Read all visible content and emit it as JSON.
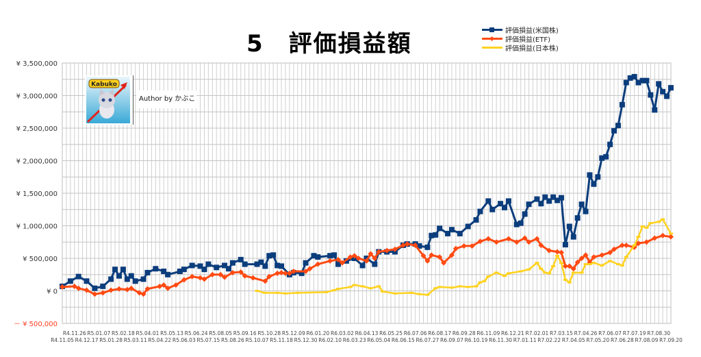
{
  "chart_data": {
    "type": "line",
    "title": "5　評価損益額",
    "xlabel": "",
    "ylabel": "",
    "x_unit": "weeks since R4.11.05",
    "xlim": [
      0,
      150
    ],
    "ylim": [
      -500000,
      3500000
    ],
    "y_ticks": [
      3500000,
      3000000,
      2500000,
      2000000,
      1500000,
      1000000,
      500000,
      0,
      -500000
    ],
    "y_tick_labels": [
      "¥ 3,500,000",
      "¥ 3,000,000",
      "¥ 2,500,000",
      "¥ 2,000,000",
      "¥ 1,500,000",
      "¥ 1,000,000",
      "¥ 500,000",
      "¥ 0",
      "－ ¥ 500,000"
    ],
    "negative_color": "#ff3b1f",
    "grid": true,
    "legend_position": "top-right",
    "x_tick_labels": [
      "R4.11.05",
      "R4.11.26",
      "R4.12.17",
      "R5.01.07",
      "R5.01.28",
      "R5.02.18",
      "R5.03.11",
      "R5.04.01",
      "R5.04.22",
      "R5.05.13",
      "R5.06.03",
      "R5.06.24",
      "R5.07.15",
      "R5.08.05",
      "R5.08.26",
      "R5.09.16",
      "R5.10.07",
      "R5.10.28",
      "R5.11.18",
      "R5.12.09",
      "R5.12.30",
      "R6.01.20",
      "R6.02.10",
      "R6.03.02",
      "R6.03.23",
      "R6.04.13",
      "R6.05.04",
      "R6.05.25",
      "R6.06.15",
      "R6.07.06",
      "R6.07.27",
      "R6.08.17",
      "R6.09.07",
      "R6.09.28",
      "R6.10.19",
      "R6.11.09",
      "R6.11.30",
      "R6.12.21",
      "R7.01.11",
      "R7.02.01",
      "R7.02.22",
      "R7.03.15",
      "R7.04.05",
      "R7.04.26",
      "R7.05.20",
      "R7.06.07",
      "R7.06.28",
      "R7.07.19",
      "R7.08.09",
      "R7.08.30",
      "R7.09.20"
    ],
    "series": [
      {
        "name": "評価損益(米国株)",
        "color": "#0b3d7c",
        "marker": "square",
        "points": [
          [
            0,
            70000
          ],
          [
            2,
            150000
          ],
          [
            4,
            220000
          ],
          [
            6,
            150000
          ],
          [
            8,
            40000
          ],
          [
            10,
            70000
          ],
          [
            12,
            180000
          ],
          [
            13,
            330000
          ],
          [
            14,
            230000
          ],
          [
            15,
            330000
          ],
          [
            16,
            180000
          ],
          [
            17,
            230000
          ],
          [
            18,
            150000
          ],
          [
            20,
            180000
          ],
          [
            21,
            280000
          ],
          [
            23,
            340000
          ],
          [
            25,
            300000
          ],
          [
            26,
            250000
          ],
          [
            29,
            300000
          ],
          [
            30,
            330000
          ],
          [
            32,
            390000
          ],
          [
            34,
            380000
          ],
          [
            35,
            330000
          ],
          [
            36,
            410000
          ],
          [
            38,
            360000
          ],
          [
            40,
            390000
          ],
          [
            41,
            340000
          ],
          [
            42,
            430000
          ],
          [
            44,
            480000
          ],
          [
            45,
            410000
          ],
          [
            48,
            410000
          ],
          [
            49,
            440000
          ],
          [
            50,
            380000
          ],
          [
            51,
            540000
          ],
          [
            52,
            550000
          ],
          [
            53,
            390000
          ],
          [
            54,
            380000
          ],
          [
            56,
            250000
          ],
          [
            57,
            280000
          ],
          [
            59,
            270000
          ],
          [
            60,
            430000
          ],
          [
            62,
            540000
          ],
          [
            63,
            520000
          ],
          [
            66,
            540000
          ],
          [
            67,
            550000
          ],
          [
            68,
            410000
          ],
          [
            70,
            460000
          ],
          [
            72,
            500000
          ],
          [
            74,
            390000
          ],
          [
            75,
            500000
          ],
          [
            77,
            410000
          ],
          [
            78,
            600000
          ],
          [
            80,
            600000
          ],
          [
            82,
            600000
          ],
          [
            84,
            700000
          ],
          [
            85,
            720000
          ],
          [
            87,
            720000
          ],
          [
            88,
            690000
          ],
          [
            90,
            670000
          ],
          [
            91,
            850000
          ],
          [
            92,
            860000
          ],
          [
            93,
            960000
          ],
          [
            95,
            880000
          ],
          [
            96,
            940000
          ],
          [
            98,
            880000
          ],
          [
            100,
            990000
          ],
          [
            102,
            1090000
          ],
          [
            103,
            1220000
          ],
          [
            105,
            1380000
          ],
          [
            106,
            1250000
          ],
          [
            108,
            1340000
          ],
          [
            109,
            1280000
          ],
          [
            110,
            1380000
          ],
          [
            112,
            1020000
          ],
          [
            113,
            1040000
          ],
          [
            114,
            1180000
          ],
          [
            115,
            1330000
          ],
          [
            117,
            1410000
          ],
          [
            118,
            1340000
          ],
          [
            119,
            1440000
          ],
          [
            120,
            1380000
          ],
          [
            121,
            1440000
          ],
          [
            122,
            1390000
          ],
          [
            123,
            1430000
          ],
          [
            124,
            710000
          ],
          [
            125,
            990000
          ],
          [
            126,
            830000
          ],
          [
            127,
            1120000
          ],
          [
            128,
            1330000
          ],
          [
            129,
            1220000
          ],
          [
            130,
            1780000
          ],
          [
            131,
            1640000
          ],
          [
            132,
            1750000
          ],
          [
            133,
            2040000
          ],
          [
            134,
            2060000
          ],
          [
            135,
            2250000
          ],
          [
            136,
            2460000
          ],
          [
            137,
            2540000
          ],
          [
            138,
            2860000
          ],
          [
            139,
            3200000
          ],
          [
            140,
            3270000
          ],
          [
            141,
            3290000
          ],
          [
            142,
            3200000
          ],
          [
            143,
            3230000
          ],
          [
            144,
            3230000
          ],
          [
            145,
            3010000
          ],
          [
            146,
            2780000
          ],
          [
            147,
            3180000
          ],
          [
            148,
            3060000
          ],
          [
            149,
            2990000
          ],
          [
            150,
            3120000
          ]
        ]
      },
      {
        "name": "評価損益(ETF)",
        "color": "#ff4a12",
        "marker": "diamond",
        "points": [
          [
            0,
            60000
          ],
          [
            3,
            70000
          ],
          [
            4,
            40000
          ],
          [
            6,
            10000
          ],
          [
            8,
            -50000
          ],
          [
            10,
            -30000
          ],
          [
            12,
            10000
          ],
          [
            14,
            30000
          ],
          [
            16,
            20000
          ],
          [
            17,
            40000
          ],
          [
            19,
            -30000
          ],
          [
            20,
            -50000
          ],
          [
            21,
            30000
          ],
          [
            24,
            70000
          ],
          [
            25,
            90000
          ],
          [
            26,
            40000
          ],
          [
            28,
            90000
          ],
          [
            30,
            170000
          ],
          [
            32,
            220000
          ],
          [
            34,
            200000
          ],
          [
            35,
            180000
          ],
          [
            37,
            250000
          ],
          [
            39,
            250000
          ],
          [
            40,
            210000
          ],
          [
            42,
            280000
          ],
          [
            44,
            290000
          ],
          [
            45,
            230000
          ],
          [
            47,
            200000
          ],
          [
            50,
            150000
          ],
          [
            51,
            220000
          ],
          [
            53,
            270000
          ],
          [
            54,
            280000
          ],
          [
            55,
            270000
          ],
          [
            56,
            270000
          ],
          [
            57,
            300000
          ],
          [
            60,
            300000
          ],
          [
            61,
            340000
          ],
          [
            63,
            410000
          ],
          [
            66,
            460000
          ],
          [
            68,
            480000
          ],
          [
            69,
            430000
          ],
          [
            71,
            520000
          ],
          [
            72,
            540000
          ],
          [
            73,
            500000
          ],
          [
            75,
            460000
          ],
          [
            76,
            570000
          ],
          [
            77,
            500000
          ],
          [
            78,
            600000
          ],
          [
            80,
            620000
          ],
          [
            82,
            640000
          ],
          [
            84,
            700000
          ],
          [
            85,
            720000
          ],
          [
            87,
            700000
          ],
          [
            89,
            540000
          ],
          [
            90,
            460000
          ],
          [
            91,
            550000
          ],
          [
            93,
            520000
          ],
          [
            94,
            430000
          ],
          [
            96,
            550000
          ],
          [
            97,
            650000
          ],
          [
            99,
            690000
          ],
          [
            101,
            690000
          ],
          [
            103,
            760000
          ],
          [
            105,
            800000
          ],
          [
            107,
            750000
          ],
          [
            110,
            800000
          ],
          [
            112,
            750000
          ],
          [
            114,
            810000
          ],
          [
            115,
            750000
          ],
          [
            117,
            800000
          ],
          [
            118,
            700000
          ],
          [
            120,
            620000
          ],
          [
            122,
            600000
          ],
          [
            123,
            590000
          ],
          [
            124,
            380000
          ],
          [
            125,
            380000
          ],
          [
            126,
            340000
          ],
          [
            127,
            440000
          ],
          [
            128,
            500000
          ],
          [
            129,
            550000
          ],
          [
            130,
            440000
          ],
          [
            131,
            520000
          ],
          [
            133,
            550000
          ],
          [
            135,
            590000
          ],
          [
            136,
            640000
          ],
          [
            138,
            700000
          ],
          [
            139,
            700000
          ],
          [
            141,
            670000
          ],
          [
            142,
            730000
          ],
          [
            144,
            750000
          ],
          [
            146,
            810000
          ],
          [
            148,
            850000
          ],
          [
            150,
            830000
          ]
        ]
      },
      {
        "name": "評価損益(日本株)",
        "color": "#ffd21f",
        "marker": "dash",
        "points": [
          [
            48,
            0
          ],
          [
            50,
            -30000
          ],
          [
            53,
            -30000
          ],
          [
            55,
            -40000
          ],
          [
            58,
            -30000
          ],
          [
            65,
            -20000
          ],
          [
            67,
            10000
          ],
          [
            68,
            30000
          ],
          [
            71,
            60000
          ],
          [
            72,
            90000
          ],
          [
            74,
            70000
          ],
          [
            76,
            40000
          ],
          [
            78,
            70000
          ],
          [
            79,
            -10000
          ],
          [
            82,
            -40000
          ],
          [
            86,
            -30000
          ],
          [
            88,
            -50000
          ],
          [
            90,
            -60000
          ],
          [
            92,
            40000
          ],
          [
            93,
            60000
          ],
          [
            96,
            50000
          ],
          [
            98,
            70000
          ],
          [
            100,
            60000
          ],
          [
            102,
            70000
          ],
          [
            103,
            130000
          ],
          [
            104,
            150000
          ],
          [
            105,
            220000
          ],
          [
            107,
            280000
          ],
          [
            109,
            230000
          ],
          [
            110,
            270000
          ],
          [
            113,
            300000
          ],
          [
            115,
            330000
          ],
          [
            117,
            430000
          ],
          [
            118,
            340000
          ],
          [
            119,
            280000
          ],
          [
            120,
            270000
          ],
          [
            121,
            380000
          ],
          [
            122,
            540000
          ],
          [
            123,
            430000
          ],
          [
            124,
            170000
          ],
          [
            125,
            130000
          ],
          [
            126,
            280000
          ],
          [
            128,
            280000
          ],
          [
            129,
            410000
          ],
          [
            130,
            410000
          ],
          [
            131,
            430000
          ],
          [
            133,
            390000
          ],
          [
            135,
            460000
          ],
          [
            137,
            410000
          ],
          [
            138,
            390000
          ],
          [
            139,
            520000
          ],
          [
            141,
            700000
          ],
          [
            142,
            830000
          ],
          [
            143,
            990000
          ],
          [
            144,
            970000
          ],
          [
            145,
            1040000
          ],
          [
            147,
            1060000
          ],
          [
            148,
            1100000
          ],
          [
            150,
            880000
          ]
        ]
      }
    ]
  },
  "logo": {
    "text": "Kabuko"
  },
  "author": "Author by かぶこ"
}
